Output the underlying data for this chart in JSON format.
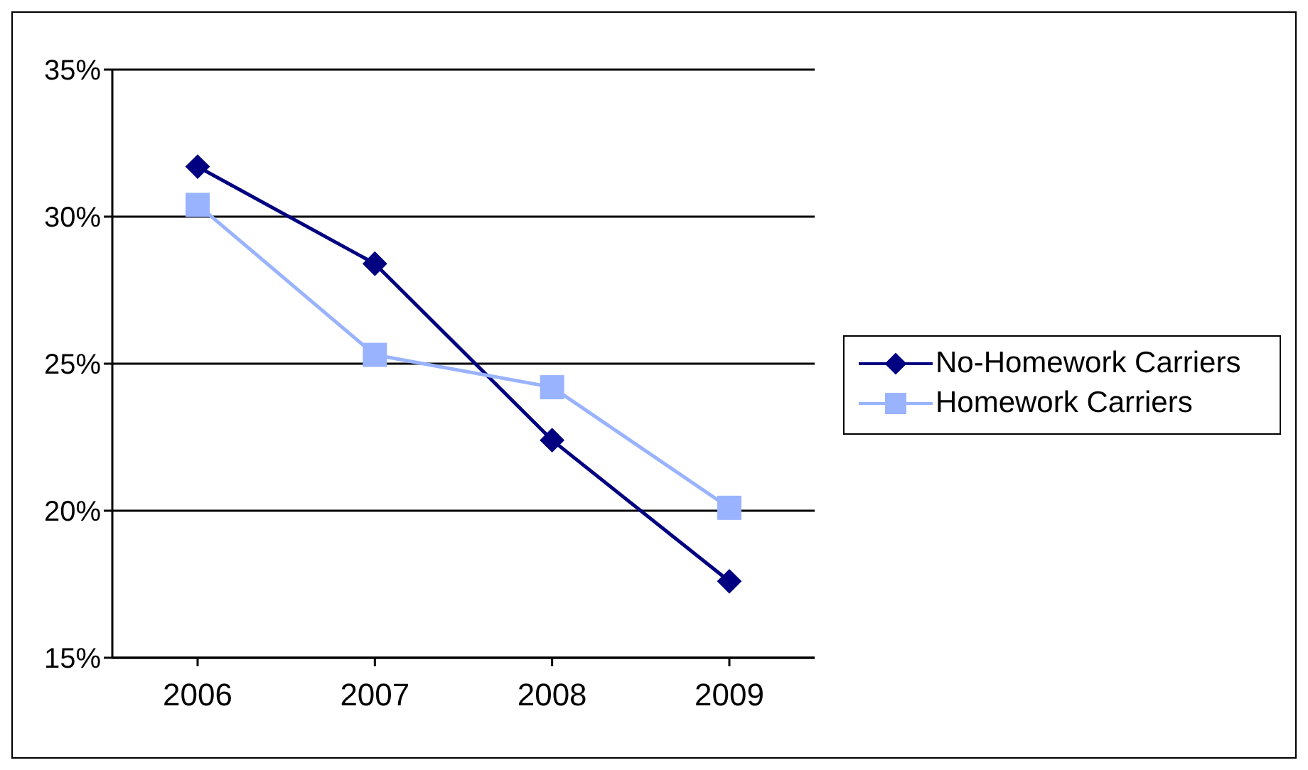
{
  "chart_data": {
    "type": "line",
    "categories": [
      "2006",
      "2007",
      "2008",
      "2009"
    ],
    "series": [
      {
        "name": "No-Homework Carriers",
        "color": "#000080",
        "marker": "diamond",
        "values": [
          31.7,
          28.4,
          22.4,
          17.6
        ]
      },
      {
        "name": "Homework Carriers",
        "color": "#99b3ff",
        "marker": "square",
        "values": [
          30.4,
          25.3,
          24.2,
          20.1
        ]
      }
    ],
    "ylim": [
      15,
      35
    ],
    "yticks": [
      {
        "value": 15,
        "label": "15%"
      },
      {
        "value": 20,
        "label": "20%"
      },
      {
        "value": 25,
        "label": "25%"
      },
      {
        "value": 30,
        "label": "30%"
      },
      {
        "value": 35,
        "label": "35%"
      }
    ],
    "grid": "y",
    "legend": "right"
  }
}
